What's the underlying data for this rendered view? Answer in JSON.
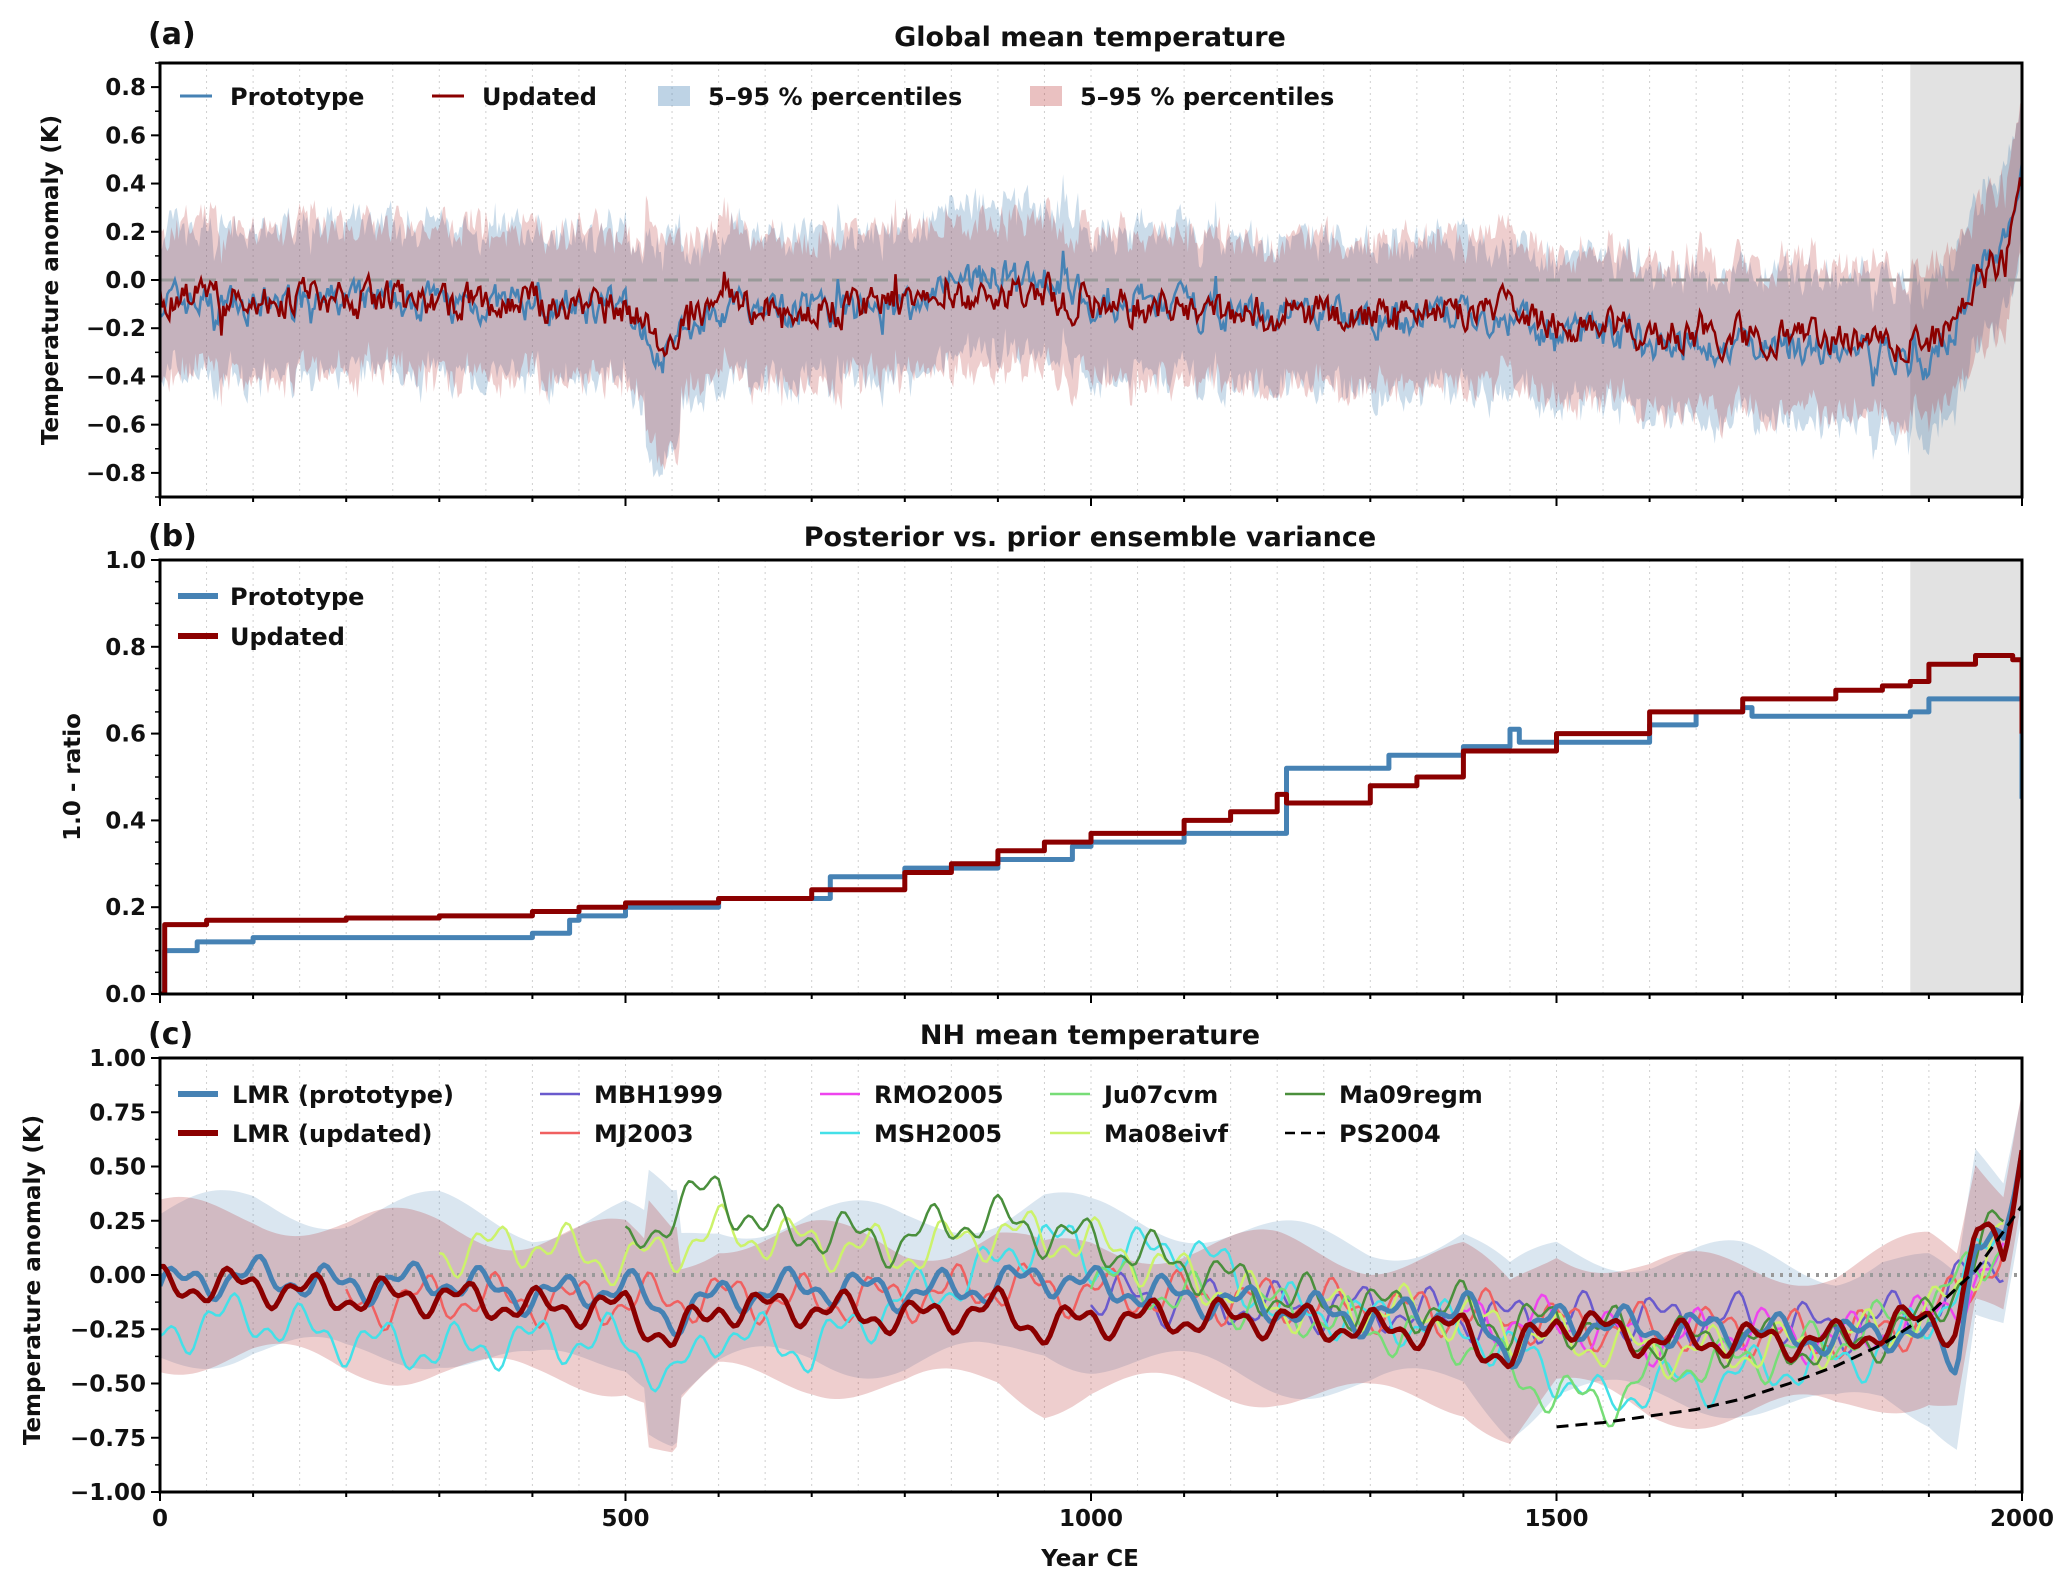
{
  "chart_data": [
    {
      "id": "a",
      "type": "line",
      "panel_label": "(a)",
      "title": "Global mean temperature",
      "ylabel": "Temperature anomaly (K)",
      "xlim": [
        0,
        2000
      ],
      "ylim": [
        -0.9,
        0.9
      ],
      "yticks": [
        "0.8",
        "0.6",
        "0.4",
        "0.2",
        "0.0",
        "−0.2",
        "−0.4",
        "−0.6",
        "−0.8"
      ],
      "shaded_span": [
        1880,
        2000
      ],
      "reference_line": 0.0,
      "legend": [
        "Prototype",
        "Updated",
        "5–95 % percentiles",
        "5–95 % percentiles"
      ],
      "series": [
        {
          "name": "Prototype",
          "color": "#4682b4",
          "x": [
            0,
            100,
            200,
            300,
            400,
            500,
            540,
            600,
            700,
            800,
            850,
            900,
            950,
            1000,
            1100,
            1200,
            1300,
            1400,
            1450,
            1500,
            1600,
            1700,
            1800,
            1850,
            1900,
            1920,
            1950,
            1980,
            2000
          ],
          "values": [
            -0.08,
            -0.1,
            -0.09,
            -0.1,
            -0.1,
            -0.12,
            -0.3,
            -0.1,
            -0.12,
            -0.12,
            0.0,
            0.02,
            0.02,
            -0.08,
            -0.12,
            -0.15,
            -0.15,
            -0.15,
            -0.15,
            -0.22,
            -0.25,
            -0.27,
            -0.28,
            -0.3,
            -0.35,
            -0.3,
            0.05,
            0.15,
            0.45
          ]
        },
        {
          "name": "Updated",
          "color": "#8b0000",
          "x": [
            0,
            100,
            200,
            300,
            400,
            500,
            540,
            600,
            700,
            800,
            850,
            900,
            950,
            1000,
            1100,
            1200,
            1300,
            1400,
            1450,
            1500,
            1600,
            1700,
            1800,
            1850,
            1900,
            1920,
            1950,
            1980,
            2000
          ],
          "values": [
            -0.06,
            -0.08,
            -0.08,
            -0.09,
            -0.1,
            -0.11,
            -0.25,
            -0.1,
            -0.1,
            -0.1,
            -0.08,
            -0.06,
            -0.06,
            -0.1,
            -0.12,
            -0.15,
            -0.14,
            -0.14,
            -0.12,
            -0.2,
            -0.22,
            -0.23,
            -0.25,
            -0.26,
            -0.27,
            -0.2,
            0.0,
            0.1,
            0.4
          ]
        }
      ]
    },
    {
      "id": "b",
      "type": "line",
      "panel_label": "(b)",
      "title": "Posterior vs. prior ensemble variance",
      "ylabel": "1.0 - ratio",
      "xlim": [
        0,
        2000
      ],
      "ylim": [
        0.0,
        1.0
      ],
      "yticks": [
        "1.0",
        "0.8",
        "0.6",
        "0.4",
        "0.2",
        "0.0"
      ],
      "shaded_span": [
        1880,
        2000
      ],
      "legend": [
        "Prototype",
        "Updated"
      ],
      "series": [
        {
          "name": "Prototype",
          "color": "#4682b4",
          "x": [
            0,
            5,
            40,
            100,
            200,
            300,
            400,
            440,
            450,
            500,
            600,
            700,
            720,
            800,
            900,
            980,
            1000,
            1100,
            1150,
            1200,
            1210,
            1300,
            1320,
            1400,
            1450,
            1460,
            1500,
            1600,
            1650,
            1700,
            1710,
            1800,
            1880,
            1900,
            1990,
            2000
          ],
          "values": [
            0.0,
            0.1,
            0.12,
            0.13,
            0.13,
            0.13,
            0.14,
            0.17,
            0.18,
            0.2,
            0.22,
            0.22,
            0.27,
            0.29,
            0.31,
            0.34,
            0.35,
            0.37,
            0.37,
            0.37,
            0.52,
            0.52,
            0.55,
            0.57,
            0.61,
            0.58,
            0.58,
            0.62,
            0.65,
            0.66,
            0.64,
            0.64,
            0.65,
            0.68,
            0.68,
            0.45
          ]
        },
        {
          "name": "Updated",
          "color": "#8b0000",
          "x": [
            0,
            5,
            50,
            100,
            200,
            300,
            400,
            450,
            500,
            600,
            700,
            800,
            850,
            900,
            950,
            1000,
            1100,
            1150,
            1200,
            1210,
            1300,
            1350,
            1400,
            1500,
            1600,
            1700,
            1800,
            1850,
            1880,
            1900,
            1950,
            1990,
            2000
          ],
          "values": [
            0.0,
            0.16,
            0.17,
            0.17,
            0.175,
            0.18,
            0.19,
            0.2,
            0.21,
            0.22,
            0.24,
            0.28,
            0.3,
            0.33,
            0.35,
            0.37,
            0.4,
            0.42,
            0.46,
            0.44,
            0.48,
            0.5,
            0.56,
            0.6,
            0.65,
            0.68,
            0.7,
            0.71,
            0.72,
            0.76,
            0.78,
            0.77,
            0.6
          ]
        }
      ]
    },
    {
      "id": "c",
      "type": "line",
      "panel_label": "(c)",
      "title": "NH mean temperature",
      "xlabel": "Year CE",
      "ylabel": "Temperature anomaly (K)",
      "xlim": [
        0,
        2000
      ],
      "ylim": [
        -1.0,
        1.0
      ],
      "yticks": [
        "1.00",
        "0.75",
        "0.50",
        "0.25",
        "0.00",
        "−0.25",
        "−0.50",
        "−0.75",
        "−1.00"
      ],
      "xticks": [
        "0",
        "500",
        "1000",
        "1500",
        "2000"
      ],
      "reference_line": 0.0,
      "series": [
        {
          "name": "LMR (prototype)",
          "color": "#4682b4",
          "x": [
            0,
            100,
            200,
            300,
            400,
            500,
            550,
            600,
            700,
            800,
            900,
            950,
            1000,
            1100,
            1200,
            1300,
            1400,
            1450,
            1500,
            1600,
            1700,
            1800,
            1850,
            1900,
            1930,
            1950,
            1980,
            2000
          ],
          "values": [
            -0.05,
            0.0,
            -0.05,
            -0.02,
            -0.1,
            -0.05,
            -0.2,
            -0.1,
            -0.05,
            -0.08,
            -0.05,
            0.0,
            -0.05,
            -0.1,
            -0.15,
            -0.2,
            -0.15,
            -0.35,
            -0.2,
            -0.25,
            -0.25,
            -0.3,
            -0.25,
            -0.3,
            -0.4,
            0.2,
            0.1,
            0.55
          ]
        },
        {
          "name": "LMR (updated)",
          "color": "#8b0000",
          "x": [
            0,
            100,
            200,
            300,
            400,
            500,
            550,
            600,
            700,
            800,
            900,
            950,
            1000,
            1100,
            1200,
            1300,
            1400,
            1450,
            1500,
            1600,
            1700,
            1800,
            1850,
            1900,
            1930,
            1950,
            1980,
            2000
          ],
          "values": [
            -0.05,
            -0.05,
            -0.1,
            -0.1,
            -0.15,
            -0.15,
            -0.3,
            -0.15,
            -0.15,
            -0.2,
            -0.15,
            -0.25,
            -0.2,
            -0.2,
            -0.2,
            -0.25,
            -0.25,
            -0.4,
            -0.2,
            -0.3,
            -0.3,
            -0.3,
            -0.25,
            -0.2,
            -0.25,
            0.2,
            0.1,
            0.6
          ]
        },
        {
          "name": "MBH1999",
          "color": "#6a5acd",
          "x": [
            1000,
            1100,
            1200,
            1300,
            1400,
            1500,
            1600,
            1700,
            1800,
            1900,
            1980
          ],
          "values": [
            -0.1,
            -0.12,
            -0.15,
            -0.15,
            -0.2,
            -0.2,
            -0.2,
            -0.2,
            -0.25,
            -0.15,
            0.1
          ]
        },
        {
          "name": "MJ2003",
          "color": "#f06060",
          "x": [
            200,
            300,
            400,
            500,
            600,
            700,
            800,
            900,
            1000,
            1100,
            1200,
            1300,
            1400,
            1500,
            1600,
            1700,
            1800,
            1900,
            1980
          ],
          "values": [
            -0.15,
            -0.1,
            -0.12,
            -0.12,
            -0.1,
            -0.12,
            -0.1,
            -0.05,
            -0.08,
            -0.1,
            -0.12,
            -0.15,
            -0.18,
            -0.22,
            -0.25,
            -0.25,
            -0.3,
            -0.2,
            0.1
          ]
        },
        {
          "name": "RMO2005",
          "color": "#ee44ee",
          "x": [
            1400,
            1500,
            1600,
            1700,
            1800,
            1900,
            1980
          ],
          "values": [
            -0.2,
            -0.22,
            -0.3,
            -0.25,
            -0.3,
            -0.2,
            0.05
          ]
        },
        {
          "name": "MSH2005",
          "color": "#44e0e8",
          "x": [
            0,
            50,
            100,
            200,
            300,
            400,
            500,
            550,
            600,
            700,
            800,
            850,
            900,
            950,
            1000,
            1050,
            1100,
            1150,
            1200,
            1300,
            1400,
            1450,
            1500,
            1550,
            1600,
            1650,
            1700,
            1800,
            1850,
            1900,
            1950,
            1980
          ],
          "values": [
            -0.3,
            -0.2,
            -0.2,
            -0.3,
            -0.35,
            -0.3,
            -0.3,
            -0.5,
            -0.25,
            -0.35,
            -0.1,
            -0.05,
            0.05,
            0.2,
            0.05,
            0.1,
            0.15,
            0.0,
            -0.15,
            -0.2,
            -0.25,
            -0.35,
            -0.45,
            -0.6,
            -0.5,
            -0.5,
            -0.45,
            -0.4,
            -0.35,
            -0.2,
            0.05,
            0.2
          ]
        },
        {
          "name": "Ju07cvm",
          "color": "#77dd77",
          "x": [
            1000,
            1100,
            1200,
            1300,
            1400,
            1450,
            1500,
            1550,
            1600,
            1650,
            1700,
            1800,
            1900,
            1980
          ],
          "values": [
            0.0,
            -0.1,
            -0.15,
            -0.25,
            -0.3,
            -0.45,
            -0.55,
            -0.6,
            -0.45,
            -0.4,
            -0.4,
            -0.3,
            -0.15,
            0.15
          ]
        },
        {
          "name": "Ma08eivf",
          "color": "#ccf26b",
          "x": [
            300,
            400,
            500,
            600,
            700,
            800,
            900,
            1000,
            1100,
            1200,
            1300,
            1400,
            1500,
            1600,
            1700,
            1800,
            1900,
            1980
          ],
          "values": [
            0.1,
            0.15,
            0.05,
            0.2,
            0.15,
            0.1,
            0.2,
            0.15,
            0.0,
            -0.15,
            -0.15,
            -0.2,
            -0.3,
            -0.35,
            -0.35,
            -0.3,
            -0.2,
            0.2
          ]
        },
        {
          "name": "Ma09regm",
          "color": "#4a8f3c",
          "x": [
            500,
            550,
            600,
            650,
            700,
            800,
            850,
            900,
            950,
            1000,
            1050,
            1100,
            1200,
            1300,
            1400,
            1450,
            1500,
            1600,
            1700,
            1800,
            1900,
            1980
          ],
          "values": [
            0.1,
            0.3,
            0.4,
            0.2,
            0.2,
            0.15,
            0.25,
            0.25,
            0.2,
            0.15,
            0.1,
            0.05,
            -0.1,
            -0.15,
            -0.15,
            -0.25,
            -0.2,
            -0.3,
            -0.3,
            -0.35,
            -0.2,
            0.25
          ]
        },
        {
          "name": "PS2004",
          "color": "#000000",
          "dash": true,
          "x": [
            1500,
            1550,
            1600,
            1650,
            1700,
            1750,
            1800,
            1850,
            1900,
            1950,
            2000
          ],
          "values": [
            -0.7,
            -0.68,
            -0.65,
            -0.62,
            -0.57,
            -0.5,
            -0.42,
            -0.32,
            -0.18,
            0.02,
            0.32
          ]
        }
      ]
    }
  ]
}
